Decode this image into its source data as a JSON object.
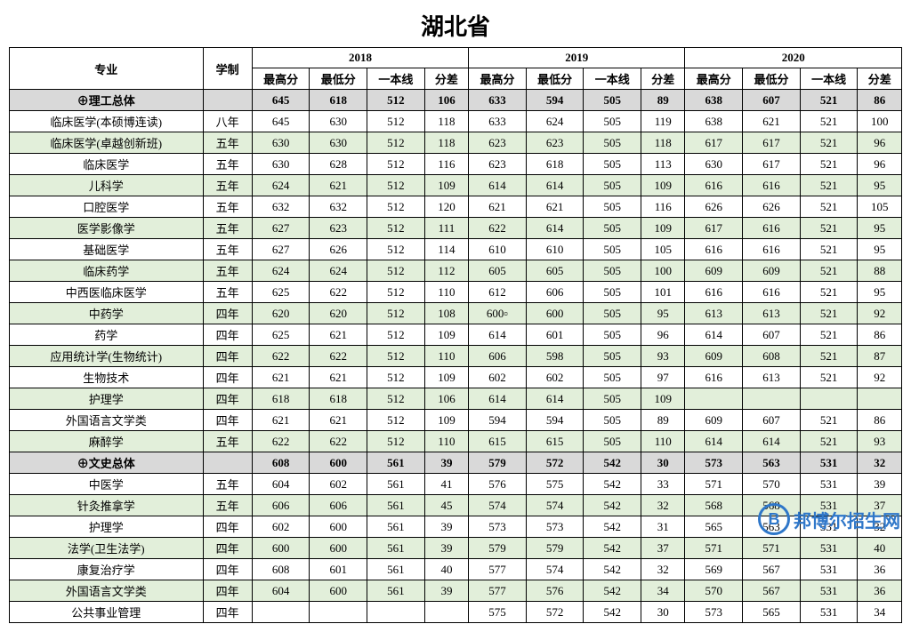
{
  "title": "湖北省",
  "header": {
    "major": "专业",
    "duration": "学制",
    "years": [
      "2018",
      "2019",
      "2020"
    ],
    "subcols": [
      "最高分",
      "最低分",
      "一本线",
      "分差"
    ]
  },
  "style": {
    "summary_bg": "#d9d9d9",
    "alt_bg": "#e2efda",
    "border_color": "#000000",
    "text_color": "#000000"
  },
  "rows": [
    {
      "type": "summary",
      "major": "⊕理工总体",
      "dur": "",
      "y18": [
        "645",
        "618",
        "512",
        "106"
      ],
      "y19": [
        "633",
        "594",
        "505",
        "89"
      ],
      "y20": [
        "638",
        "607",
        "521",
        "86"
      ]
    },
    {
      "type": "plain",
      "major": "临床医学(本硕博连读)",
      "dur": "八年",
      "y18": [
        "645",
        "630",
        "512",
        "118"
      ],
      "y19": [
        "633",
        "624",
        "505",
        "119"
      ],
      "y20": [
        "638",
        "621",
        "521",
        "100"
      ]
    },
    {
      "type": "alt",
      "major": "临床医学(卓越创新班)",
      "dur": "五年",
      "y18": [
        "630",
        "630",
        "512",
        "118"
      ],
      "y19": [
        "623",
        "623",
        "505",
        "118"
      ],
      "y20": [
        "617",
        "617",
        "521",
        "96"
      ]
    },
    {
      "type": "plain",
      "major": "临床医学",
      "dur": "五年",
      "y18": [
        "630",
        "628",
        "512",
        "116"
      ],
      "y19": [
        "623",
        "618",
        "505",
        "113"
      ],
      "y20": [
        "630",
        "617",
        "521",
        "96"
      ]
    },
    {
      "type": "alt",
      "major": "儿科学",
      "dur": "五年",
      "y18": [
        "624",
        "621",
        "512",
        "109"
      ],
      "y19": [
        "614",
        "614",
        "505",
        "109"
      ],
      "y20": [
        "616",
        "616",
        "521",
        "95"
      ]
    },
    {
      "type": "plain",
      "major": "口腔医学",
      "dur": "五年",
      "y18": [
        "632",
        "632",
        "512",
        "120"
      ],
      "y19": [
        "621",
        "621",
        "505",
        "116"
      ],
      "y20": [
        "626",
        "626",
        "521",
        "105"
      ]
    },
    {
      "type": "alt",
      "major": "医学影像学",
      "dur": "五年",
      "y18": [
        "627",
        "623",
        "512",
        "111"
      ],
      "y19": [
        "622",
        "614",
        "505",
        "109"
      ],
      "y20": [
        "617",
        "616",
        "521",
        "95"
      ]
    },
    {
      "type": "plain",
      "major": "基础医学",
      "dur": "五年",
      "y18": [
        "627",
        "626",
        "512",
        "114"
      ],
      "y19": [
        "610",
        "610",
        "505",
        "105"
      ],
      "y20": [
        "616",
        "616",
        "521",
        "95"
      ]
    },
    {
      "type": "alt",
      "major": "临床药学",
      "dur": "五年",
      "y18": [
        "624",
        "624",
        "512",
        "112"
      ],
      "y19": [
        "605",
        "605",
        "505",
        "100"
      ],
      "y20": [
        "609",
        "609",
        "521",
        "88"
      ]
    },
    {
      "type": "plain",
      "major": "中西医临床医学",
      "dur": "五年",
      "y18": [
        "625",
        "622",
        "512",
        "110"
      ],
      "y19": [
        "612",
        "606",
        "505",
        "101"
      ],
      "y20": [
        "616",
        "616",
        "521",
        "95"
      ]
    },
    {
      "type": "alt",
      "major": "中药学",
      "dur": "四年",
      "y18": [
        "620",
        "620",
        "512",
        "108"
      ],
      "y19": [
        "600▫",
        "600",
        "505",
        "95"
      ],
      "y20": [
        "613",
        "613",
        "521",
        "92"
      ]
    },
    {
      "type": "plain",
      "major": "药学",
      "dur": "四年",
      "y18": [
        "625",
        "621",
        "512",
        "109"
      ],
      "y19": [
        "614",
        "601",
        "505",
        "96"
      ],
      "y20": [
        "614",
        "607",
        "521",
        "86"
      ]
    },
    {
      "type": "alt",
      "major": "应用统计学(生物统计)",
      "dur": "四年",
      "y18": [
        "622",
        "622",
        "512",
        "110"
      ],
      "y19": [
        "606",
        "598",
        "505",
        "93"
      ],
      "y20": [
        "609",
        "608",
        "521",
        "87"
      ]
    },
    {
      "type": "plain",
      "major": "生物技术",
      "dur": "四年",
      "y18": [
        "621",
        "621",
        "512",
        "109"
      ],
      "y19": [
        "602",
        "602",
        "505",
        "97"
      ],
      "y20": [
        "616",
        "613",
        "521",
        "92"
      ]
    },
    {
      "type": "alt",
      "major": "护理学",
      "dur": "四年",
      "y18": [
        "618",
        "618",
        "512",
        "106"
      ],
      "y19": [
        "614",
        "614",
        "505",
        "109"
      ],
      "y20": [
        "",
        "",
        "",
        ""
      ]
    },
    {
      "type": "plain",
      "major": "外国语言文学类",
      "dur": "四年",
      "y18": [
        "621",
        "621",
        "512",
        "109"
      ],
      "y19": [
        "594",
        "594",
        "505",
        "89"
      ],
      "y20": [
        "609",
        "607",
        "521",
        "86"
      ]
    },
    {
      "type": "alt",
      "major": "麻醉学",
      "dur": "五年",
      "y18": [
        "622",
        "622",
        "512",
        "110"
      ],
      "y19": [
        "615",
        "615",
        "505",
        "110"
      ],
      "y20": [
        "614",
        "614",
        "521",
        "93"
      ]
    },
    {
      "type": "summary",
      "major": "⊕文史总体",
      "dur": "",
      "y18": [
        "608",
        "600",
        "561",
        "39"
      ],
      "y19": [
        "579",
        "572",
        "542",
        "30"
      ],
      "y20": [
        "573",
        "563",
        "531",
        "32"
      ]
    },
    {
      "type": "plain",
      "major": "中医学",
      "dur": "五年",
      "y18": [
        "604",
        "602",
        "561",
        "41"
      ],
      "y19": [
        "576",
        "575",
        "542",
        "33"
      ],
      "y20": [
        "571",
        "570",
        "531",
        "39"
      ]
    },
    {
      "type": "alt",
      "major": "针灸推拿学",
      "dur": "五年",
      "y18": [
        "606",
        "606",
        "561",
        "45"
      ],
      "y19": [
        "574",
        "574",
        "542",
        "32"
      ],
      "y20": [
        "568",
        "568",
        "531",
        "37"
      ]
    },
    {
      "type": "plain",
      "major": "护理学",
      "dur": "四年",
      "y18": [
        "602",
        "600",
        "561",
        "39"
      ],
      "y19": [
        "573",
        "573",
        "542",
        "31"
      ],
      "y20": [
        "565",
        "563",
        "531",
        "32"
      ]
    },
    {
      "type": "alt",
      "major": "法学(卫生法学)",
      "dur": "四年",
      "y18": [
        "600",
        "600",
        "561",
        "39"
      ],
      "y19": [
        "579",
        "579",
        "542",
        "37"
      ],
      "y20": [
        "571",
        "571",
        "531",
        "40"
      ]
    },
    {
      "type": "plain",
      "major": "康复治疗学",
      "dur": "四年",
      "y18": [
        "608",
        "601",
        "561",
        "40"
      ],
      "y19": [
        "577",
        "574",
        "542",
        "32"
      ],
      "y20": [
        "569",
        "567",
        "531",
        "36"
      ]
    },
    {
      "type": "alt",
      "major": "外国语言文学类",
      "dur": "四年",
      "y18": [
        "604",
        "600",
        "561",
        "39"
      ],
      "y19": [
        "577",
        "576",
        "542",
        "34"
      ],
      "y20": [
        "570",
        "567",
        "531",
        "36"
      ]
    },
    {
      "type": "plain",
      "major": "公共事业管理",
      "dur": "四年",
      "y18": [
        "",
        "",
        "",
        ""
      ],
      "y19": [
        "575",
        "572",
        "542",
        "30"
      ],
      "y20": [
        "573",
        "565",
        "531",
        "34"
      ]
    }
  ],
  "watermark": "邦博尔招生网"
}
